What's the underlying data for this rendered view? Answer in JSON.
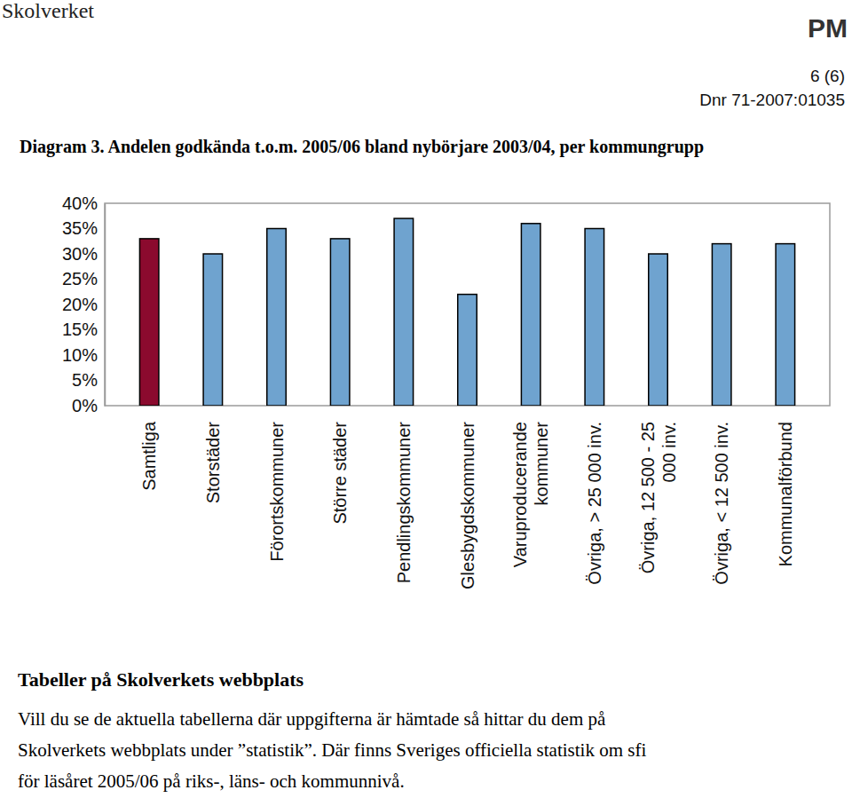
{
  "header": {
    "org": "Skolverket",
    "doc_type": "PM",
    "page": "6 (6)",
    "ref": "Dnr 71-2007:01035"
  },
  "chart_data": {
    "type": "bar",
    "title": "Diagram 3. Andelen godkända t.o.m. 2005/06 bland nybörjare 2003/04, per kommungrupp",
    "categories": [
      "Samtliga",
      "Storstäder",
      "Förortskommuner",
      "Större städer",
      "Pendlingskommuner",
      "Glesbygdskommuner",
      "Varuproducerande kommuner",
      "Övriga, > 25 000 inv.",
      "Övriga, 12 500 - 25 000 inv.",
      "Övriga, < 12 500 inv.",
      "Kommunalförbund"
    ],
    "values": [
      33,
      30,
      35,
      33,
      37,
      22,
      36,
      35,
      30,
      32,
      32
    ],
    "colors": [
      "#8b0a2e",
      "#6fa3cf",
      "#6fa3cf",
      "#6fa3cf",
      "#6fa3cf",
      "#6fa3cf",
      "#6fa3cf",
      "#6fa3cf",
      "#6fa3cf",
      "#6fa3cf",
      "#6fa3cf"
    ],
    "ylim": [
      0,
      40
    ],
    "yticks": [
      {
        "value": 0,
        "label": "0%"
      },
      {
        "value": 5,
        "label": "5%"
      },
      {
        "value": 10,
        "label": "10%"
      },
      {
        "value": 15,
        "label": "15%"
      },
      {
        "value": 20,
        "label": "20%"
      },
      {
        "value": 25,
        "label": "25%"
      },
      {
        "value": 30,
        "label": "30%"
      },
      {
        "value": 35,
        "label": "35%"
      },
      {
        "value": 40,
        "label": "40%"
      }
    ],
    "grid": false
  },
  "section": {
    "heading": "Tabeller på Skolverkets webbplats",
    "lines": [
      "Vill du se de aktuella tabellerna där uppgifterna är hämtade så hittar du dem på",
      "Skolverkets webbplats under ”statistik”. Där finns Sveriges officiella statistik om sfi",
      "för läsåret 2005/06 på riks-, läns- och kommunnivå."
    ]
  }
}
